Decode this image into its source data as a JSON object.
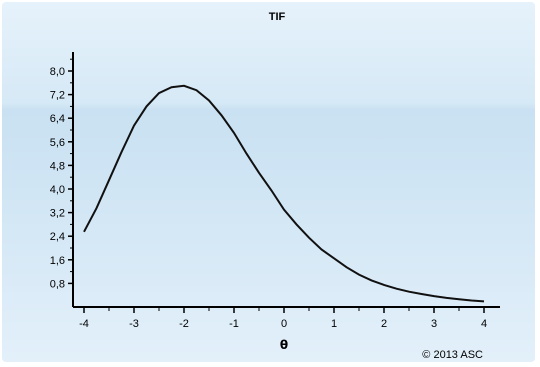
{
  "chart_data": {
    "type": "line",
    "title": "TIF",
    "xlabel": "θ",
    "ylabel": "",
    "xlim": [
      -4,
      4
    ],
    "ylim": [
      0,
      8.4
    ],
    "xticks": [
      "-4",
      "-3",
      "-2",
      "-1",
      "0",
      "1",
      "2",
      "3",
      "4"
    ],
    "yticks": [
      "0,8",
      "1,6",
      "2,4",
      "3,2",
      "4,0",
      "4,8",
      "5,6",
      "6,4",
      "7,2",
      "8,0"
    ],
    "grid": false,
    "credit": "© 2013 ASC",
    "series": [
      {
        "values": [
          [
            -4.0,
            2.55
          ],
          [
            -3.75,
            3.35
          ],
          [
            -3.5,
            4.3
          ],
          [
            -3.25,
            5.25
          ],
          [
            -3.0,
            6.15
          ],
          [
            -2.75,
            6.8
          ],
          [
            -2.5,
            7.25
          ],
          [
            -2.25,
            7.45
          ],
          [
            -2.0,
            7.5
          ],
          [
            -1.75,
            7.35
          ],
          [
            -1.5,
            7.0
          ],
          [
            -1.25,
            6.5
          ],
          [
            -1.0,
            5.9
          ],
          [
            -0.75,
            5.2
          ],
          [
            -0.5,
            4.55
          ],
          [
            -0.25,
            3.95
          ],
          [
            0.0,
            3.3
          ],
          [
            0.25,
            2.8
          ],
          [
            0.5,
            2.35
          ],
          [
            0.75,
            1.95
          ],
          [
            1.0,
            1.65
          ],
          [
            1.25,
            1.35
          ],
          [
            1.5,
            1.1
          ],
          [
            1.75,
            0.9
          ],
          [
            2.0,
            0.75
          ],
          [
            2.25,
            0.62
          ],
          [
            2.5,
            0.52
          ],
          [
            2.75,
            0.44
          ],
          [
            3.0,
            0.37
          ],
          [
            3.25,
            0.31
          ],
          [
            3.5,
            0.26
          ],
          [
            3.75,
            0.22
          ],
          [
            4.0,
            0.19
          ]
        ]
      }
    ]
  }
}
